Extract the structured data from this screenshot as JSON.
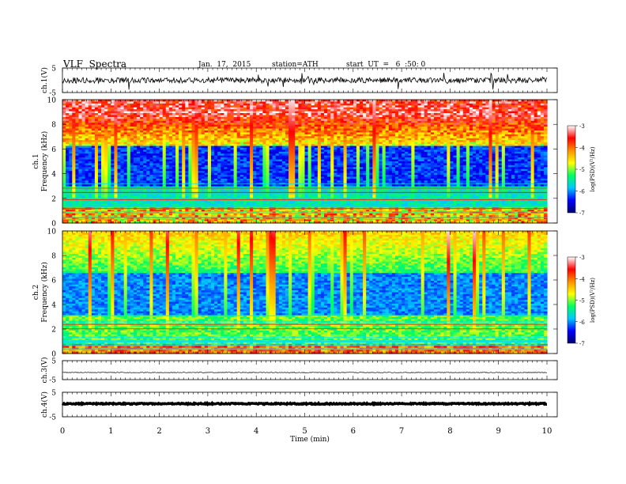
{
  "header": {
    "title": "VLF  Spectra",
    "date": "Jan.  17,  2015",
    "station": "station=ATH",
    "start": "start  UT  =   6  :50: 0"
  },
  "chart_data": [
    {
      "type": "line",
      "ylabel": "ch.1(V)",
      "ylim": [
        -5,
        5
      ],
      "yticks": [
        "5",
        "-5"
      ],
      "grid": false
    },
    {
      "type": "heatmap",
      "ylabel_top": "ch.1",
      "ylabel": "Frequency  (kHz)",
      "ylim": [
        0,
        10
      ],
      "yticks": [
        "0",
        "2",
        "4",
        "6",
        "8",
        "10"
      ],
      "colorbar": {
        "label": "log(PSD)(V²/Hz)",
        "range": [
          -7,
          -3
        ],
        "ticks": [
          "-3",
          "-4",
          "-5",
          "-6",
          "-7"
        ],
        "colors": [
          "#000070",
          "#0000ff",
          "#00c8ff",
          "#00ff60",
          "#ffff00",
          "#ff9000",
          "#ff0000",
          "#ffffff"
        ]
      }
    },
    {
      "type": "heatmap",
      "ylabel_top": "ch.2",
      "ylabel": "Frequency  (kHz)",
      "ylim": [
        0,
        10
      ],
      "yticks": [
        "0",
        "2",
        "4",
        "6",
        "8",
        "10"
      ],
      "colorbar": {
        "label": "log(PSD)(V²/Hz)",
        "range": [
          -7,
          -3
        ],
        "ticks": [
          "-3",
          "-4",
          "-5",
          "-6",
          "-7"
        ],
        "colors": [
          "#000070",
          "#0000ff",
          "#00c8ff",
          "#00ff60",
          "#ffff00",
          "#ff9000",
          "#ff0000",
          "#ffffff"
        ]
      }
    },
    {
      "type": "line",
      "ylabel": "ch.3(V)",
      "ylim": [
        -5,
        5
      ],
      "yticks": [
        "5",
        "-5"
      ],
      "grid": false
    },
    {
      "type": "line",
      "ylabel": "ch.4(V)",
      "ylim": [
        -5,
        5
      ],
      "yticks": [
        "5",
        "-5"
      ],
      "grid": false
    }
  ],
  "xaxis": {
    "label": "Time  (min)",
    "xlim": [
      0,
      10
    ],
    "ticks": [
      "0",
      "1",
      "2",
      "3",
      "4",
      "5",
      "6",
      "7",
      "8",
      "9",
      "10"
    ]
  }
}
